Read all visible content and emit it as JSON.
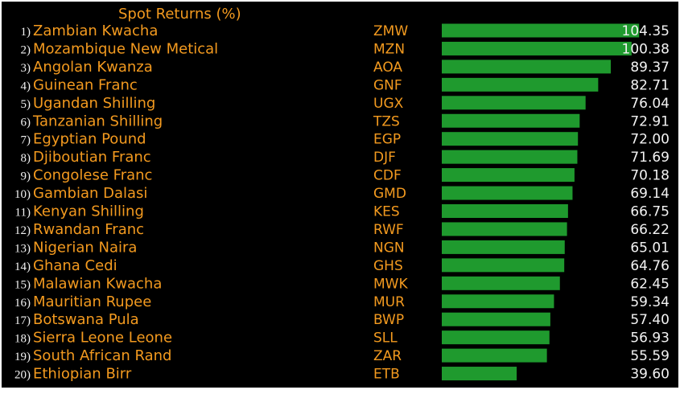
{
  "chart_data": {
    "type": "bar",
    "orientation": "horizontal",
    "title": "Spot Returns (%)",
    "xlim": [
      0,
      110
    ],
    "grid": false,
    "colors": {
      "background": "#000000",
      "bar": "#1f9a2e",
      "label": "#f39a1f",
      "value": "#f2f2f2"
    },
    "rows": [
      {
        "rank": "1)",
        "name": "Zambian Kwacha",
        "code": "ZMW",
        "value": 104.35,
        "value_label": "104.35"
      },
      {
        "rank": "2)",
        "name": "Mozambique New Metical",
        "code": "MZN",
        "value": 100.38,
        "value_label": "100.38"
      },
      {
        "rank": "3)",
        "name": "Angolan Kwanza",
        "code": "AOA",
        "value": 89.37,
        "value_label": "89.37"
      },
      {
        "rank": "4)",
        "name": "Guinean Franc",
        "code": "GNF",
        "value": 82.71,
        "value_label": "82.71"
      },
      {
        "rank": "5)",
        "name": "Ugandan Shilling",
        "code": "UGX",
        "value": 76.04,
        "value_label": "76.04"
      },
      {
        "rank": "6)",
        "name": "Tanzanian Shilling",
        "code": "TZS",
        "value": 72.91,
        "value_label": "72.91"
      },
      {
        "rank": "7)",
        "name": "Egyptian Pound",
        "code": "EGP",
        "value": 72.0,
        "value_label": "72.00"
      },
      {
        "rank": "8)",
        "name": "Djiboutian Franc",
        "code": "DJF",
        "value": 71.69,
        "value_label": "71.69"
      },
      {
        "rank": "9)",
        "name": "Congolese Franc",
        "code": "CDF",
        "value": 70.18,
        "value_label": "70.18"
      },
      {
        "rank": "10)",
        "name": "Gambian Dalasi",
        "code": "GMD",
        "value": 69.14,
        "value_label": "69.14"
      },
      {
        "rank": "11)",
        "name": "Kenyan Shilling",
        "code": "KES",
        "value": 66.75,
        "value_label": "66.75"
      },
      {
        "rank": "12)",
        "name": "Rwandan Franc",
        "code": "RWF",
        "value": 66.22,
        "value_label": "66.22"
      },
      {
        "rank": "13)",
        "name": "Nigerian Naira",
        "code": "NGN",
        "value": 65.01,
        "value_label": "65.01"
      },
      {
        "rank": "14)",
        "name": "Ghana Cedi",
        "code": "GHS",
        "value": 64.76,
        "value_label": "64.76"
      },
      {
        "rank": "15)",
        "name": "Malawian Kwacha",
        "code": "MWK",
        "value": 62.45,
        "value_label": "62.45"
      },
      {
        "rank": "16)",
        "name": "Mauritian Rupee",
        "code": "MUR",
        "value": 59.34,
        "value_label": "59.34"
      },
      {
        "rank": "17)",
        "name": "Botswana Pula",
        "code": "BWP",
        "value": 57.4,
        "value_label": "57.40"
      },
      {
        "rank": "18)",
        "name": "Sierra Leone Leone",
        "code": "SLL",
        "value": 56.93,
        "value_label": "56.93"
      },
      {
        "rank": "19)",
        "name": "South African Rand",
        "code": "ZAR",
        "value": 55.59,
        "value_label": "55.59"
      },
      {
        "rank": "20)",
        "name": "Ethiopian Birr",
        "code": "ETB",
        "value": 39.6,
        "value_label": "39.60"
      }
    ]
  }
}
